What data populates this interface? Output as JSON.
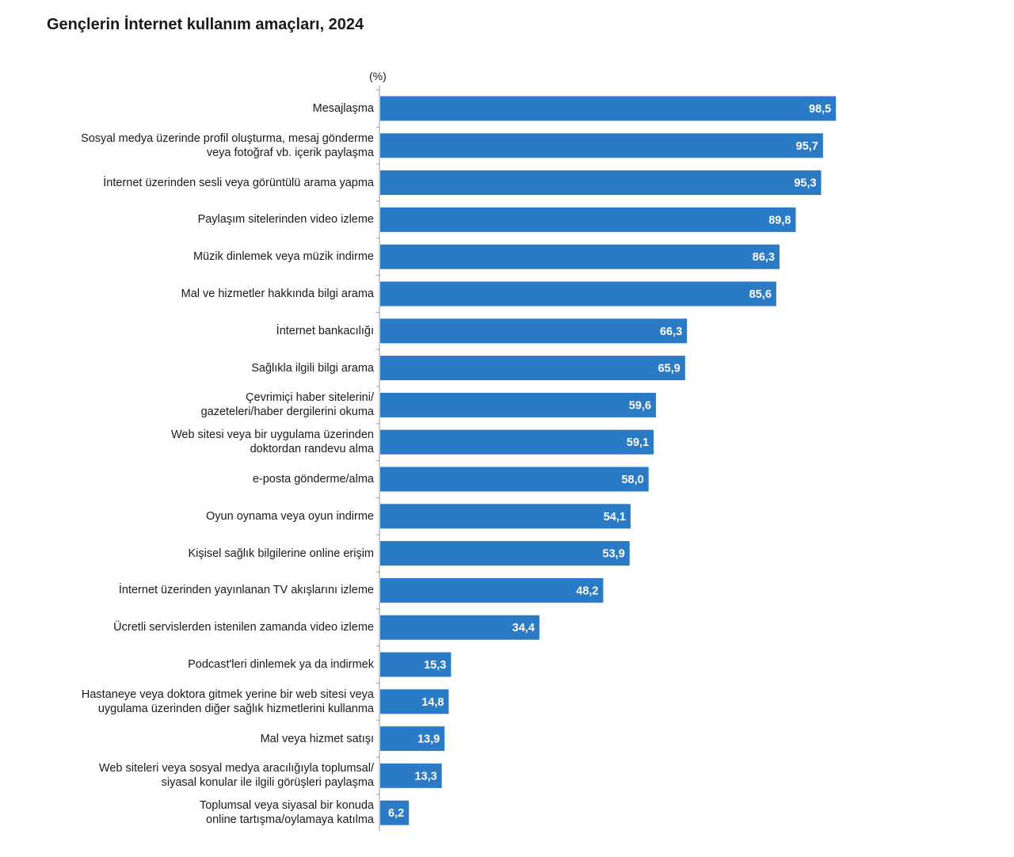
{
  "title": "Gençlerin İnternet kullanım amaçları, 2024",
  "colors": {
    "bar": "#2a7ac6",
    "bar_value_text": "#ffffff",
    "axis": "#9a9a9a"
  },
  "chart_data": {
    "type": "bar",
    "orientation": "horizontal",
    "unit_label": "(%)",
    "xlim": [
      0,
      100
    ],
    "grid": false,
    "categories": [
      "Mesajlaşma",
      "Sosyal medya üzerinde profil oluşturma, mesaj gönderme\nveya fotoğraf vb. içerik paylaşma",
      "İnternet üzerinden sesli veya görüntülü arama yapma",
      "Paylaşım sitelerinden video izleme",
      "Müzik dinlemek veya müzik indirme",
      "Mal ve hizmetler hakkında bilgi arama",
      "İnternet bankacılığı",
      "Sağlıkla ilgili bilgi arama",
      "Çevrimiçi haber sitelerini/\ngazeteleri/haber dergilerini okuma",
      "Web sitesi veya bir uygulama üzerinden\ndoktordan randevu alma",
      "e-posta gönderme/alma",
      "Oyun oynama veya oyun indirme",
      "Kişisel sağlık bilgilerine online erişim",
      "İnternet üzerinden yayınlanan TV akışlarını izleme",
      "Ücretli servislerden istenilen zamanda video izleme",
      "Podcast'leri dinlemek ya da indirmek",
      "Hastaneye veya doktora gitmek yerine bir web sitesi veya\nuygulama üzerinden diğer sağlık hizmetlerini kullanma",
      "Mal veya hizmet satışı",
      "Web siteleri veya sosyal medya aracılığıyla toplumsal/\nsiyasal konular ile ilgili görüşleri paylaşma",
      "Toplumsal veya siyasal bir konuda\nonline tartışma/oylamaya katılma"
    ],
    "values": [
      98.5,
      95.7,
      95.3,
      89.8,
      86.3,
      85.6,
      66.3,
      65.9,
      59.6,
      59.1,
      58.0,
      54.1,
      53.9,
      48.2,
      34.4,
      15.3,
      14.8,
      13.9,
      13.3,
      6.2
    ],
    "value_labels": [
      "98,5",
      "95,7",
      "95,3",
      "89,8",
      "86,3",
      "85,6",
      "66,3",
      "65,9",
      "59,6",
      "59,1",
      "58,0",
      "54,1",
      "53,9",
      "48,2",
      "34,4",
      "15,3",
      "14,8",
      "13,9",
      "13,3",
      "6,2"
    ]
  }
}
